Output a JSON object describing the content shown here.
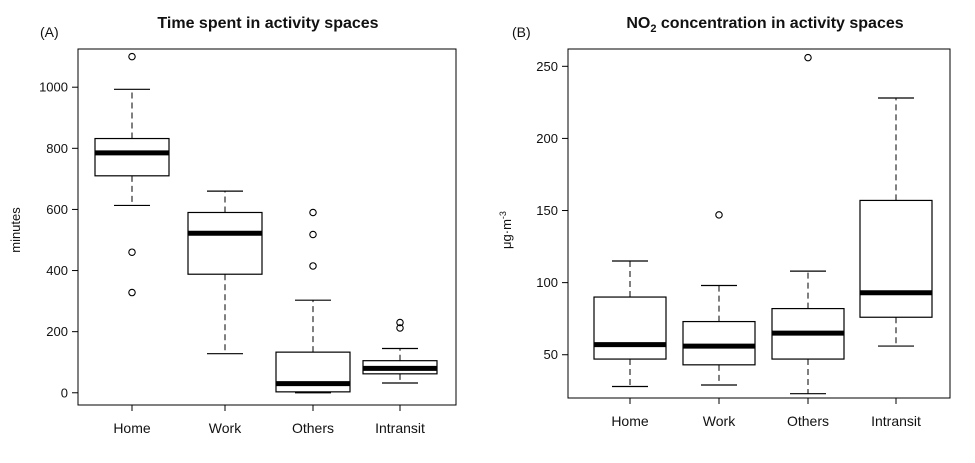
{
  "chart_data": [
    {
      "type": "box",
      "panel_label": "(A)",
      "title": "Time spent in activity spaces",
      "title_sub": "",
      "title_after": "",
      "ylabel": "minutes",
      "ylabel_sup": "",
      "categories": [
        "Home",
        "Work",
        "Others",
        "Intransit"
      ],
      "ylim": [
        -40,
        1125
      ],
      "yticks": [
        0,
        200,
        400,
        600,
        800,
        1000
      ],
      "boxes": [
        {
          "whisker_low": 613,
          "q1": 710,
          "median": 785,
          "q3": 832,
          "whisker_high": 993,
          "outliers": [
            1100,
            460,
            328
          ]
        },
        {
          "whisker_low": 128,
          "q1": 388,
          "median": 522,
          "q3": 590,
          "whisker_high": 660,
          "outliers": []
        },
        {
          "whisker_low": 0,
          "q1": 3,
          "median": 30,
          "q3": 133,
          "whisker_high": 303,
          "outliers": [
            590,
            518,
            415
          ]
        },
        {
          "whisker_low": 32,
          "q1": 62,
          "median": 80,
          "q3": 105,
          "whisker_high": 145,
          "outliers": [
            230,
            212
          ]
        }
      ]
    },
    {
      "type": "box",
      "panel_label": "(B)",
      "title": "NO",
      "title_sub": "2",
      "title_after": " concentration in activity spaces",
      "ylabel": "μg·m",
      "ylabel_sup": "-3",
      "categories": [
        "Home",
        "Work",
        "Others",
        "Intransit"
      ],
      "ylim": [
        20,
        262
      ],
      "yticks": [
        50,
        100,
        150,
        200,
        250
      ],
      "boxes": [
        {
          "whisker_low": 28,
          "q1": 47,
          "median": 57,
          "q3": 90,
          "whisker_high": 115,
          "outliers": []
        },
        {
          "whisker_low": 29,
          "q1": 43,
          "median": 56,
          "q3": 73,
          "whisker_high": 98,
          "outliers": [
            147
          ]
        },
        {
          "whisker_low": 23,
          "q1": 47,
          "median": 65,
          "q3": 82,
          "whisker_high": 108,
          "outliers": [
            256
          ]
        },
        {
          "whisker_low": 56,
          "q1": 76,
          "median": 93,
          "q3": 157,
          "whisker_high": 228,
          "outliers": []
        }
      ]
    }
  ]
}
